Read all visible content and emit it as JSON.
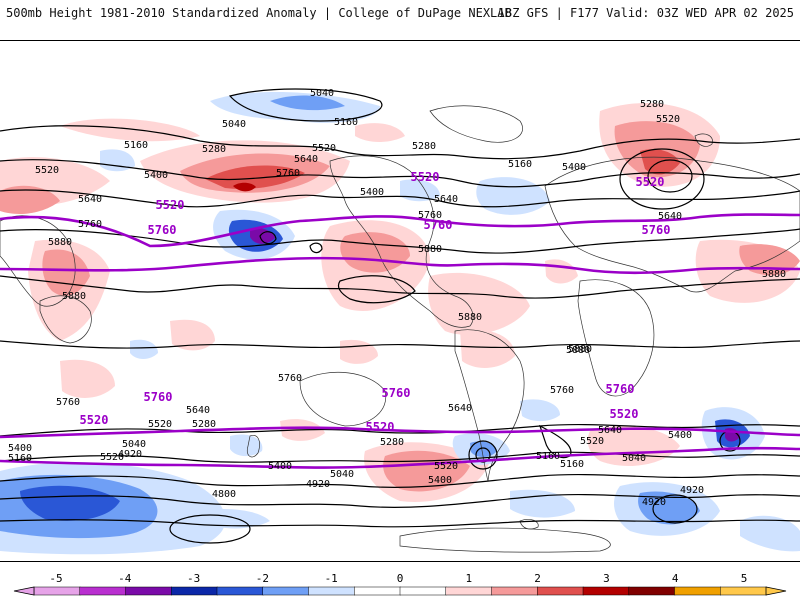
{
  "header": {
    "title": "500mb Height 1981-2010 Standardized Anomaly | College of DuPage NEXLAB",
    "model_info": "18Z GFS | F177 Valid: 03Z WED APR 02 2025"
  },
  "colors": {
    "accent_contour": "#9b00c8",
    "contour": "#000000",
    "neg_light": "#cfe2ff",
    "neg_mid": "#6f9ff5",
    "neg_strong": "#2a57d6",
    "neg_deep": "#0b27a8",
    "pos_light": "#ffd6d6",
    "pos_mid": "#f59a9a",
    "pos_strong": "#e0504e",
    "pos_deep": "#b30000"
  },
  "map": {
    "contour_labels": {
      "l5040_a": "5040",
      "l5040_b": "5040",
      "l5160_a": "5160",
      "l5160_b": "5160",
      "l5160_c": "5160",
      "l5280_a": "5280",
      "l5280_b": "5280",
      "l5280_c": "5280",
      "l5400_a": "5400",
      "l5400_b": "5400",
      "l5400_c": "5400",
      "l5520_a": "5520",
      "l5520_b": "5520",
      "l5520_c": "5520",
      "l5640_a": "5640",
      "l5640_b": "5640",
      "l5640_c": "5640",
      "l5640_d": "5640",
      "l5760_a": "5760",
      "l5760_b": "5760",
      "l5760_c": "5760",
      "l5880_a": "5880",
      "l5880_b": "5880",
      "l5880_c": "5880",
      "l5880_d": "5880",
      "l5880_e": "5880",
      "l5880_f": "5880",
      "s5760_a": "5760",
      "s5640_a": "5640",
      "s5520_a": "5520",
      "s5520_b": "5520",
      "s5280_a": "5280",
      "s5640_b": "5640",
      "s5400_a": "5400",
      "s5400_b": "5400",
      "s5160_a": "5160",
      "s5040_a": "5040",
      "s4920_a": "4920",
      "s4800_a": "4800",
      "s5040_b": "5040",
      "s4920_b": "4920",
      "s5520_c": "5520",
      "s5400_c": "5400",
      "s5280_b": "5280",
      "s5160_b": "5160",
      "s5040_c": "5040",
      "s4920_c": "4920",
      "s5640_c": "5640",
      "s5520_d": "5520",
      "s5400_d": "5400",
      "s4920_d": "4920",
      "s5760_b": "5760",
      "s5760_c": "5760",
      "s5880_a": "5880",
      "s5160_c": "5160"
    },
    "purple_labels": {
      "n5520_a": "5520",
      "n5520_b": "5520",
      "n5520_c": "5520",
      "n5760_a": "5760",
      "n5760_b": "5760",
      "n5760_c": "5760",
      "s5760_a": "5760",
      "s5760_b": "5760",
      "s5760_c": "5760",
      "s5520_a": "5520",
      "s5520_b": "5520",
      "s5520_c": "5520"
    }
  },
  "colorbar": {
    "ticks": [
      "-5",
      "-4",
      "-3",
      "-2",
      "-1",
      "0",
      "1",
      "2",
      "3",
      "4",
      "5"
    ],
    "colors": [
      "#e6a3e8",
      "#b92fd0",
      "#7a0aa8",
      "#0b27a8",
      "#2a57d6",
      "#6f9ff5",
      "#cfe2ff",
      "#ffffff",
      "#ffffff",
      "#ffd6d6",
      "#f59a9a",
      "#e0504e",
      "#b30000",
      "#800000",
      "#f0a000",
      "#ffc84a"
    ]
  }
}
